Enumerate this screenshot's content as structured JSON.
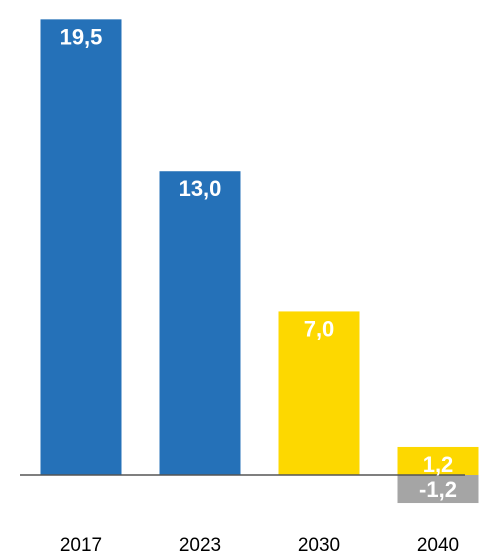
{
  "chart_data": {
    "type": "bar",
    "categories": [
      "2017",
      "2023",
      "2030",
      "2040"
    ],
    "values": [
      19.5,
      13.0,
      7.0,
      1.2
    ],
    "value_labels": [
      "19,5",
      "13,0",
      "7,0",
      "1,2"
    ],
    "negative_values": [
      null,
      null,
      null,
      -1.2
    ],
    "negative_labels": [
      "",
      "",
      "",
      "-1,2"
    ],
    "bar_colors": [
      "#2571b8",
      "#2571b8",
      "#fdd800",
      "#fdd800"
    ],
    "negative_color": "#a5a5a5",
    "axis_color": "#555555",
    "title": "",
    "xlabel": "",
    "ylabel": "",
    "ylim": [
      -1.8,
      19.9
    ],
    "grid": false,
    "legend": "none"
  }
}
